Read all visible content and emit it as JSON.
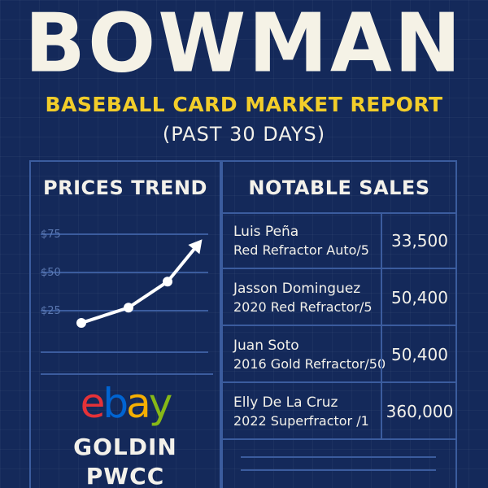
{
  "header": {
    "title": "BOWMAN",
    "subtitle": "BASEBALL CARD MARKET REPORT",
    "period": "(PAST 30 DAYS)"
  },
  "prices_trend": {
    "heading": "PRICES TREND",
    "y_labels": [
      "$75",
      "$50",
      "$25"
    ],
    "line_color": "#ffffff"
  },
  "chart_data": {
    "type": "line",
    "title": "PRICES TREND",
    "ytick_labels": [
      "$25",
      "$50",
      "$75"
    ],
    "series": [
      {
        "values": [
          17,
          27,
          44,
          70
        ]
      }
    ],
    "grid": true
  },
  "notable_sales": {
    "heading": "NOTABLE SALES",
    "rows": [
      {
        "player": "Luis Peña",
        "card": "Red Refractor Auto/5",
        "price": "33,500"
      },
      {
        "player": "Jasson Dominguez",
        "card": "2020 Red Refractor/5",
        "price": "50,400"
      },
      {
        "player": "Juan Soto",
        "card": "2016 Gold Refractor/50",
        "price": "50,400"
      },
      {
        "player": "Elly De La Cruz",
        "card": "2022 Superfractor /1",
        "price": "360,000"
      }
    ]
  },
  "marketplaces": {
    "ebay": {
      "e": "e",
      "b": "b",
      "a": "a",
      "y": "y"
    },
    "goldin": "GOLDIN",
    "pwcc": "PWCC"
  },
  "colors": {
    "background": "#14295a",
    "accent": "#f2cd2a",
    "grid": "#3b5c9e",
    "text": "#f3f1ea"
  }
}
